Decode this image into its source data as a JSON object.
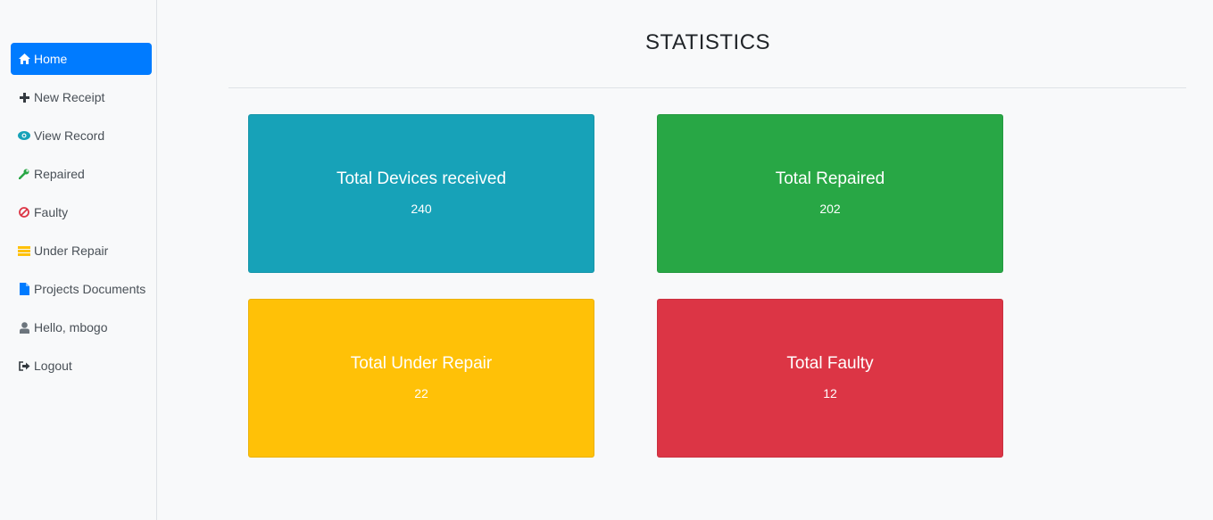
{
  "sidebar": {
    "items": [
      {
        "label": "Home",
        "icon": "home-icon",
        "active": true
      },
      {
        "label": "New Receipt",
        "icon": "plus-icon"
      },
      {
        "label": "View Record",
        "icon": "eye-icon"
      },
      {
        "label": "Repaired",
        "icon": "wrench-icon"
      },
      {
        "label": "Faulty",
        "icon": "ban-icon"
      },
      {
        "label": "Under Repair",
        "icon": "list-icon"
      },
      {
        "label": "Projects Documents",
        "icon": "file-icon"
      },
      {
        "label": "Hello, mbogo",
        "icon": "user-icon"
      },
      {
        "label": "Logout",
        "icon": "sign-out-icon"
      }
    ]
  },
  "main": {
    "title": "STATISTICS",
    "cards": [
      {
        "title": "Total Devices received",
        "value": "240",
        "color": "#17a2b8"
      },
      {
        "title": "Total Repaired",
        "value": "202",
        "color": "#28a745"
      },
      {
        "title": "Total Under Repair",
        "value": "22",
        "color": "#ffc107"
      },
      {
        "title": "Total Faulty",
        "value": "12",
        "color": "#dc3545"
      }
    ]
  },
  "colors": {
    "accent": "#007bff",
    "icon_plus": "#343a40",
    "icon_eye": "#17a2b8",
    "icon_wrench": "#28a745",
    "icon_ban": "#dc3545",
    "icon_list": "#ffc107",
    "icon_file": "#007bff",
    "icon_user": "#6c757d",
    "icon_signout": "#343a40"
  }
}
